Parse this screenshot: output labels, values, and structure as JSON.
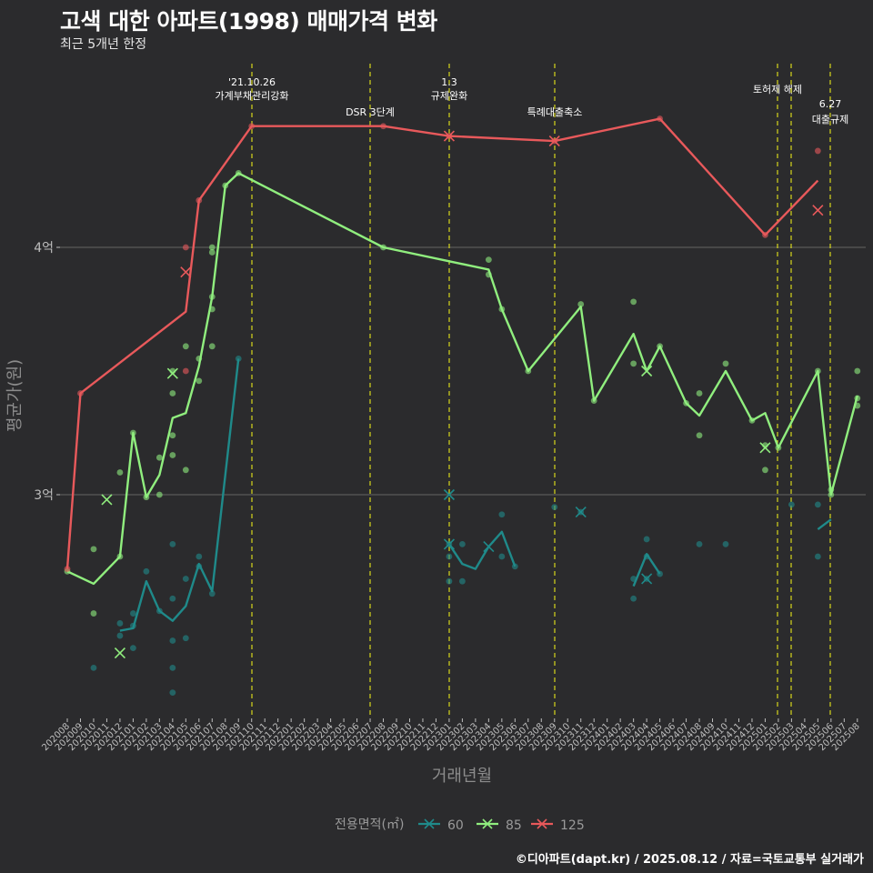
{
  "title": "고색 대한 아파트(1998) 매매가격 변화",
  "subtitle": "최근 5개년 한정",
  "caption": "©디아파트(dapt.kr) / 2025.08.12 / 자료=국토교통부 실거래가",
  "chart_data": {
    "type": "line",
    "xlabel": "거래년월",
    "ylabel": "평균가(원)",
    "x_ticks": [
      "202008",
      "202009",
      "202010",
      "202011",
      "202012",
      "202101",
      "202102",
      "202103",
      "202104",
      "202105",
      "202106",
      "202107",
      "202108",
      "202109",
      "202110",
      "202111",
      "202112",
      "202201",
      "202202",
      "202203",
      "202204",
      "202205",
      "202206",
      "202207",
      "202208",
      "202209",
      "202210",
      "202211",
      "202212",
      "202301",
      "202302",
      "202303",
      "202304",
      "202305",
      "202306",
      "202307",
      "202308",
      "202309",
      "202310",
      "202311",
      "202312",
      "202401",
      "202402",
      "202403",
      "202404",
      "202405",
      "202406",
      "202407",
      "202408",
      "202409",
      "202410",
      "202411",
      "202412",
      "202501",
      "202502",
      "202503",
      "202504",
      "202505",
      "202506",
      "202507",
      "202508"
    ],
    "y_ticks": [
      {
        "value": 30000,
        "label": "3억"
      },
      {
        "value": 40000,
        "label": "4억"
      }
    ],
    "ylim": [
      21000,
      45000
    ],
    "grid": "horizontal",
    "legend": {
      "title": "전용면적(㎡)",
      "position": "bottom",
      "items": [
        {
          "name": "60",
          "color": "#1f8a8a"
        },
        {
          "name": "85",
          "color": "#90ee7e"
        },
        {
          "name": "125",
          "color": "#e8595b"
        }
      ]
    },
    "series": [
      {
        "name": "60",
        "color": "#1f8a8a",
        "line": [
          [
            "202012",
            24500
          ],
          [
            "202101",
            24600
          ],
          [
            "202102",
            26500
          ],
          [
            "202103",
            25300
          ],
          [
            "202104",
            24900
          ],
          [
            "202105",
            25500
          ],
          [
            "202106",
            27200
          ],
          [
            "202107",
            26100
          ],
          [
            "202109",
            35500
          ],
          null,
          [
            "202301",
            28000
          ],
          [
            "202302",
            27200
          ],
          [
            "202303",
            27000
          ],
          [
            "202304",
            27900
          ],
          [
            "202305",
            28500
          ],
          [
            "202306",
            27100
          ],
          null,
          [
            "202403",
            26300
          ],
          [
            "202404",
            27600
          ],
          [
            "202405",
            26800
          ],
          null,
          [
            "202505",
            28600
          ],
          [
            "202506",
            29000
          ]
        ],
        "points": [
          [
            "202010",
            23000
          ],
          [
            "202012",
            24800
          ],
          [
            "202012",
            24300
          ],
          [
            "202101",
            24700
          ],
          [
            "202101",
            25200
          ],
          [
            "202101",
            23800
          ],
          [
            "202102",
            26900
          ],
          [
            "202103",
            25300
          ],
          [
            "202104",
            25800
          ],
          [
            "202104",
            28000
          ],
          [
            "202104",
            24100
          ],
          [
            "202104",
            23000
          ],
          [
            "202104",
            22000
          ],
          [
            "202105",
            26600
          ],
          [
            "202105",
            24200
          ],
          [
            "202106",
            27500
          ],
          [
            "202106",
            27100
          ],
          [
            "202107",
            26000
          ],
          [
            "202109",
            35500
          ],
          [
            "202301",
            26500
          ],
          [
            "202301",
            28000
          ],
          [
            "202301",
            27500
          ],
          [
            "202302",
            26500
          ],
          [
            "202302",
            28000
          ],
          [
            "202305",
            27500
          ],
          [
            "202305",
            29200
          ],
          [
            "202306",
            27100
          ],
          [
            "202309",
            29500
          ],
          [
            "202311",
            29300
          ],
          [
            "202403",
            25800
          ],
          [
            "202403",
            26600
          ],
          [
            "202404",
            26600
          ],
          [
            "202404",
            27500
          ],
          [
            "202404",
            28200
          ],
          [
            "202405",
            26800
          ],
          [
            "202408",
            28000
          ],
          [
            "202410",
            28000
          ],
          [
            "202503",
            29600
          ],
          [
            "202505",
            27500
          ],
          [
            "202505",
            29600
          ]
        ],
        "markers": [
          [
            "202301",
            30000
          ],
          [
            "202301",
            28000
          ],
          [
            "202304",
            27900
          ],
          [
            "202311",
            29300
          ],
          [
            "202404",
            26600
          ]
        ]
      },
      {
        "name": "85",
        "color": "#90ee7e",
        "line": [
          [
            "202008",
            26900
          ],
          [
            "202010",
            26400
          ],
          [
            "202012",
            27500
          ],
          [
            "202101",
            32500
          ],
          [
            "202102",
            29900
          ],
          [
            "202103",
            30800
          ],
          [
            "202104",
            33100
          ],
          [
            "202105",
            33300
          ],
          [
            "202106",
            35200
          ],
          [
            "202107",
            38000
          ],
          [
            "202108",
            42500
          ],
          [
            "202109",
            43000
          ],
          [
            "202208",
            40000
          ],
          [
            "202304",
            39100
          ],
          [
            "202305",
            37500
          ],
          [
            "202307",
            35000
          ],
          [
            "202311",
            37600
          ],
          [
            "202312",
            33800
          ],
          [
            "202403",
            36500
          ],
          [
            "202404",
            35000
          ],
          [
            "202405",
            36000
          ],
          [
            "202407",
            33700
          ],
          [
            "202408",
            33200
          ],
          [
            "202410",
            35000
          ],
          [
            "202412",
            33000
          ],
          [
            "202501",
            33300
          ],
          [
            "202502",
            31900
          ],
          [
            "202505",
            35000
          ],
          [
            "202506",
            30000
          ],
          [
            "202508",
            34000
          ]
        ],
        "points": [
          [
            "202008",
            26900
          ],
          [
            "202010",
            27800
          ],
          [
            "202010",
            25200
          ],
          [
            "202012",
            30900
          ],
          [
            "202012",
            27500
          ],
          [
            "202101",
            32500
          ],
          [
            "202102",
            29900
          ],
          [
            "202103",
            31500
          ],
          [
            "202103",
            30000
          ],
          [
            "202104",
            34100
          ],
          [
            "202104",
            32400
          ],
          [
            "202104",
            31600
          ],
          [
            "202104",
            35000
          ],
          [
            "202105",
            36000
          ],
          [
            "202105",
            31000
          ],
          [
            "202106",
            35500
          ],
          [
            "202106",
            34600
          ],
          [
            "202107",
            40000
          ],
          [
            "202107",
            39800
          ],
          [
            "202107",
            38000
          ],
          [
            "202107",
            37500
          ],
          [
            "202107",
            36000
          ],
          [
            "202108",
            42500
          ],
          [
            "202109",
            43000
          ],
          [
            "202208",
            40000
          ],
          [
            "202304",
            39500
          ],
          [
            "202304",
            38900
          ],
          [
            "202305",
            37500
          ],
          [
            "202307",
            35000
          ],
          [
            "202311",
            37700
          ],
          [
            "202312",
            33800
          ],
          [
            "202403",
            37800
          ],
          [
            "202403",
            35300
          ],
          [
            "202405",
            36000
          ],
          [
            "202407",
            33700
          ],
          [
            "202408",
            34100
          ],
          [
            "202408",
            32400
          ],
          [
            "202410",
            35300
          ],
          [
            "202412",
            33000
          ],
          [
            "202501",
            32000
          ],
          [
            "202501",
            31000
          ],
          [
            "202502",
            31900
          ],
          [
            "202505",
            35000
          ],
          [
            "202506",
            30000
          ],
          [
            "202506",
            30200
          ],
          [
            "202508",
            35000
          ],
          [
            "202508",
            33900
          ],
          [
            "202508",
            33600
          ]
        ],
        "markers": [
          [
            "202011",
            29800
          ],
          [
            "202012",
            23600
          ],
          [
            "202104",
            34900
          ],
          [
            "202404",
            35000
          ],
          [
            "202501",
            31900
          ]
        ]
      },
      {
        "name": "125",
        "color": "#e8595b",
        "line": [
          [
            "202008",
            27000
          ],
          [
            "202009",
            34100
          ],
          [
            "202105",
            37400
          ],
          [
            "202106",
            41900
          ],
          [
            "202110",
            44900
          ],
          [
            "202208",
            44900
          ],
          [
            "202301",
            44500
          ],
          [
            "202309",
            44300
          ],
          [
            "202405",
            45200
          ],
          [
            "202501",
            40500
          ],
          [
            "202505",
            42700
          ]
        ],
        "points": [
          [
            "202008",
            27000
          ],
          [
            "202009",
            34100
          ],
          [
            "202105",
            40000
          ],
          [
            "202105",
            35000
          ],
          [
            "202106",
            41900
          ],
          [
            "202110",
            44900
          ],
          [
            "202208",
            44900
          ],
          [
            "202301",
            44500
          ],
          [
            "202309",
            44300
          ],
          [
            "202405",
            45200
          ],
          [
            "202501",
            40500
          ],
          [
            "202505",
            43900
          ]
        ],
        "markers": [
          [
            "202105",
            39000
          ],
          [
            "202301",
            44500
          ],
          [
            "202309",
            44300
          ],
          [
            "202505",
            41500
          ]
        ]
      }
    ],
    "annotations": [
      {
        "x": "202110",
        "offset": 0,
        "lines": [
          "'21.10.26",
          "가계부채관리강화"
        ]
      },
      {
        "x": "202207",
        "offset": 0,
        "lines": [
          "DSR 3단계"
        ]
      },
      {
        "x": "202301",
        "offset": 0,
        "lines": [
          "1.3",
          "규제완화"
        ]
      },
      {
        "x": "202309",
        "offset": 0,
        "lines": [
          "특례대출축소"
        ]
      },
      {
        "x": "202502",
        "offset": 0,
        "lines": [
          "토허제 해제"
        ]
      },
      {
        "x": "202503",
        "offset": 0,
        "lines": []
      },
      {
        "x": "202506",
        "offset": 0,
        "lines": [
          "6.27",
          "대출규제"
        ]
      }
    ]
  }
}
